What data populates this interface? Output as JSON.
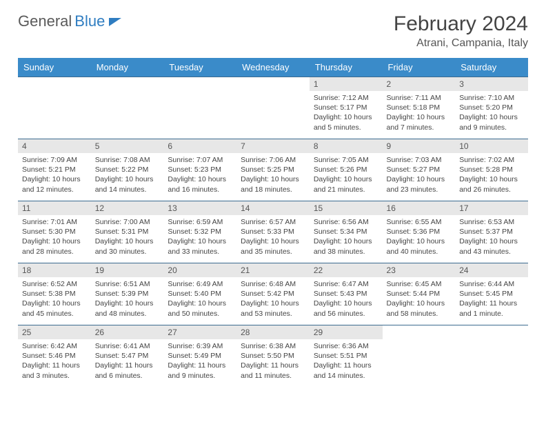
{
  "brand": {
    "part1": "General",
    "part2": "Blue"
  },
  "title": "February 2024",
  "location": "Atrani, Campania, Italy",
  "styling": {
    "header_bg": "#3a8bc9",
    "header_text": "#ffffff",
    "daynum_bg": "#e7e7e7",
    "cell_border": "#3a6a8f",
    "body_text": "#444444",
    "title_color": "#444444",
    "location_color": "#555555",
    "page_bg": "#ffffff",
    "brand_accent": "#2f7dc1",
    "title_fontsize": 30,
    "header_fontsize": 13,
    "cell_fontsize": 10.5
  },
  "weekdays": [
    "Sunday",
    "Monday",
    "Tuesday",
    "Wednesday",
    "Thursday",
    "Friday",
    "Saturday"
  ],
  "weeks": [
    [
      null,
      null,
      null,
      null,
      {
        "n": "1",
        "sr": "Sunrise: 7:12 AM",
        "ss": "Sunset: 5:17 PM",
        "dl": "Daylight: 10 hours and 5 minutes."
      },
      {
        "n": "2",
        "sr": "Sunrise: 7:11 AM",
        "ss": "Sunset: 5:18 PM",
        "dl": "Daylight: 10 hours and 7 minutes."
      },
      {
        "n": "3",
        "sr": "Sunrise: 7:10 AM",
        "ss": "Sunset: 5:20 PM",
        "dl": "Daylight: 10 hours and 9 minutes."
      }
    ],
    [
      {
        "n": "4",
        "sr": "Sunrise: 7:09 AM",
        "ss": "Sunset: 5:21 PM",
        "dl": "Daylight: 10 hours and 12 minutes."
      },
      {
        "n": "5",
        "sr": "Sunrise: 7:08 AM",
        "ss": "Sunset: 5:22 PM",
        "dl": "Daylight: 10 hours and 14 minutes."
      },
      {
        "n": "6",
        "sr": "Sunrise: 7:07 AM",
        "ss": "Sunset: 5:23 PM",
        "dl": "Daylight: 10 hours and 16 minutes."
      },
      {
        "n": "7",
        "sr": "Sunrise: 7:06 AM",
        "ss": "Sunset: 5:25 PM",
        "dl": "Daylight: 10 hours and 18 minutes."
      },
      {
        "n": "8",
        "sr": "Sunrise: 7:05 AM",
        "ss": "Sunset: 5:26 PM",
        "dl": "Daylight: 10 hours and 21 minutes."
      },
      {
        "n": "9",
        "sr": "Sunrise: 7:03 AM",
        "ss": "Sunset: 5:27 PM",
        "dl": "Daylight: 10 hours and 23 minutes."
      },
      {
        "n": "10",
        "sr": "Sunrise: 7:02 AM",
        "ss": "Sunset: 5:28 PM",
        "dl": "Daylight: 10 hours and 26 minutes."
      }
    ],
    [
      {
        "n": "11",
        "sr": "Sunrise: 7:01 AM",
        "ss": "Sunset: 5:30 PM",
        "dl": "Daylight: 10 hours and 28 minutes."
      },
      {
        "n": "12",
        "sr": "Sunrise: 7:00 AM",
        "ss": "Sunset: 5:31 PM",
        "dl": "Daylight: 10 hours and 30 minutes."
      },
      {
        "n": "13",
        "sr": "Sunrise: 6:59 AM",
        "ss": "Sunset: 5:32 PM",
        "dl": "Daylight: 10 hours and 33 minutes."
      },
      {
        "n": "14",
        "sr": "Sunrise: 6:57 AM",
        "ss": "Sunset: 5:33 PM",
        "dl": "Daylight: 10 hours and 35 minutes."
      },
      {
        "n": "15",
        "sr": "Sunrise: 6:56 AM",
        "ss": "Sunset: 5:34 PM",
        "dl": "Daylight: 10 hours and 38 minutes."
      },
      {
        "n": "16",
        "sr": "Sunrise: 6:55 AM",
        "ss": "Sunset: 5:36 PM",
        "dl": "Daylight: 10 hours and 40 minutes."
      },
      {
        "n": "17",
        "sr": "Sunrise: 6:53 AM",
        "ss": "Sunset: 5:37 PM",
        "dl": "Daylight: 10 hours and 43 minutes."
      }
    ],
    [
      {
        "n": "18",
        "sr": "Sunrise: 6:52 AM",
        "ss": "Sunset: 5:38 PM",
        "dl": "Daylight: 10 hours and 45 minutes."
      },
      {
        "n": "19",
        "sr": "Sunrise: 6:51 AM",
        "ss": "Sunset: 5:39 PM",
        "dl": "Daylight: 10 hours and 48 minutes."
      },
      {
        "n": "20",
        "sr": "Sunrise: 6:49 AM",
        "ss": "Sunset: 5:40 PM",
        "dl": "Daylight: 10 hours and 50 minutes."
      },
      {
        "n": "21",
        "sr": "Sunrise: 6:48 AM",
        "ss": "Sunset: 5:42 PM",
        "dl": "Daylight: 10 hours and 53 minutes."
      },
      {
        "n": "22",
        "sr": "Sunrise: 6:47 AM",
        "ss": "Sunset: 5:43 PM",
        "dl": "Daylight: 10 hours and 56 minutes."
      },
      {
        "n": "23",
        "sr": "Sunrise: 6:45 AM",
        "ss": "Sunset: 5:44 PM",
        "dl": "Daylight: 10 hours and 58 minutes."
      },
      {
        "n": "24",
        "sr": "Sunrise: 6:44 AM",
        "ss": "Sunset: 5:45 PM",
        "dl": "Daylight: 11 hours and 1 minute."
      }
    ],
    [
      {
        "n": "25",
        "sr": "Sunrise: 6:42 AM",
        "ss": "Sunset: 5:46 PM",
        "dl": "Daylight: 11 hours and 3 minutes."
      },
      {
        "n": "26",
        "sr": "Sunrise: 6:41 AM",
        "ss": "Sunset: 5:47 PM",
        "dl": "Daylight: 11 hours and 6 minutes."
      },
      {
        "n": "27",
        "sr": "Sunrise: 6:39 AM",
        "ss": "Sunset: 5:49 PM",
        "dl": "Daylight: 11 hours and 9 minutes."
      },
      {
        "n": "28",
        "sr": "Sunrise: 6:38 AM",
        "ss": "Sunset: 5:50 PM",
        "dl": "Daylight: 11 hours and 11 minutes."
      },
      {
        "n": "29",
        "sr": "Sunrise: 6:36 AM",
        "ss": "Sunset: 5:51 PM",
        "dl": "Daylight: 11 hours and 14 minutes."
      },
      null,
      null
    ]
  ]
}
